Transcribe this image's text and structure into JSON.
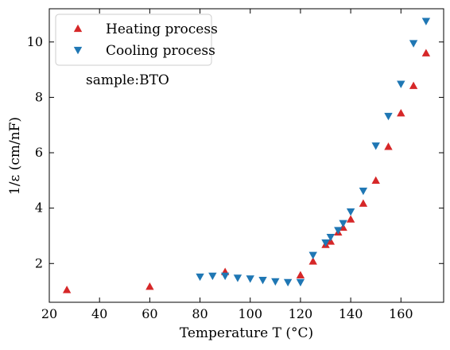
{
  "chart_data": {
    "type": "scatter",
    "title": "",
    "xlabel": "Temperature T  (°C)",
    "ylabel": "1/ε  (cm/nF)",
    "xlim": [
      20,
      177
    ],
    "ylim": [
      0.6,
      11.2
    ],
    "xticks": [
      20,
      40,
      60,
      80,
      100,
      120,
      140,
      160
    ],
    "yticks": [
      2,
      4,
      6,
      8,
      10
    ],
    "grid": false,
    "legend_position": "top-left",
    "annotation": "sample:BTO",
    "series": [
      {
        "name": "Heating process",
        "marker": "triangle-up",
        "color": "#d62728",
        "x": [
          27,
          60,
          90,
          120,
          125,
          130,
          132,
          135,
          137,
          140,
          145,
          150,
          155,
          160,
          165,
          170
        ],
        "y": [
          1.05,
          1.17,
          1.7,
          1.58,
          2.08,
          2.68,
          2.8,
          3.13,
          3.3,
          3.6,
          4.17,
          5.0,
          6.22,
          7.43,
          8.42,
          9.6
        ]
      },
      {
        "name": "Cooling process",
        "marker": "triangle-down",
        "color": "#1f77b4",
        "x": [
          80,
          85,
          90,
          95,
          100,
          105,
          110,
          115,
          120,
          125,
          130,
          132,
          135,
          137,
          140,
          145,
          150,
          155,
          160,
          165,
          170
        ],
        "y": [
          1.52,
          1.55,
          1.55,
          1.48,
          1.45,
          1.4,
          1.35,
          1.32,
          1.32,
          2.3,
          2.75,
          2.95,
          3.2,
          3.45,
          3.87,
          4.62,
          6.25,
          7.32,
          8.48,
          9.95,
          10.75
        ]
      }
    ]
  }
}
